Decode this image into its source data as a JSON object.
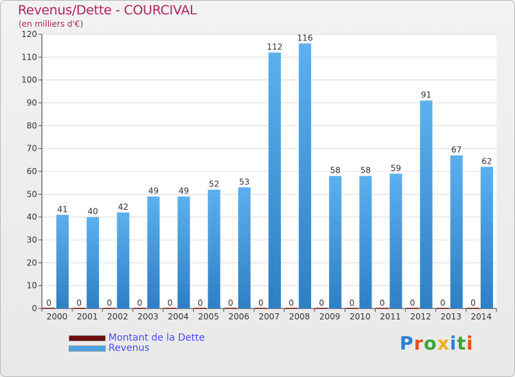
{
  "header": {
    "title": "Revenus/Dette - COURCIVAL",
    "subtitle": "(en milliers d'€)"
  },
  "chart_data": {
    "type": "bar",
    "title": "Revenus/Dette - COURCIVAL",
    "ylabel": "(en milliers d'€)",
    "xlabel": "",
    "ylim": [
      0,
      120
    ],
    "yticks": [
      0,
      10,
      20,
      30,
      40,
      50,
      60,
      70,
      80,
      90,
      100,
      110,
      120
    ],
    "grid": true,
    "categories": [
      "2000",
      "2001",
      "2002",
      "2003",
      "2004",
      "2005",
      "2006",
      "2007",
      "2008",
      "2009",
      "2010",
      "2011",
      "2012",
      "2013",
      "2014"
    ],
    "series": [
      {
        "name": "Montant de la Dette",
        "color": "#6b0d0d",
        "values": [
          0,
          0,
          0,
          0,
          0,
          0,
          0,
          0,
          0,
          0,
          0,
          0,
          0,
          0,
          0
        ]
      },
      {
        "name": "Revenus",
        "color": "#4aa3e6",
        "values": [
          41,
          40,
          42,
          49,
          49,
          52,
          53,
          112,
          116,
          58,
          58,
          59,
          91,
          67,
          62
        ]
      }
    ],
    "legend_position": "bottom-left"
  },
  "legend": {
    "dette_label": "Montant de la Dette",
    "revenus_label": "Revenus",
    "dette_color": "#6b0d0d",
    "revenus_color": "#4aa3e6"
  },
  "brand": {
    "letters": [
      "P",
      "r",
      "o",
      "x",
      "i",
      "t",
      "i"
    ],
    "colors": [
      "#2a7fd4",
      "#e8501a",
      "#3aa63a",
      "#e8b01a",
      "#2a7fd4",
      "#3aa63a",
      "#e8501a"
    ]
  }
}
